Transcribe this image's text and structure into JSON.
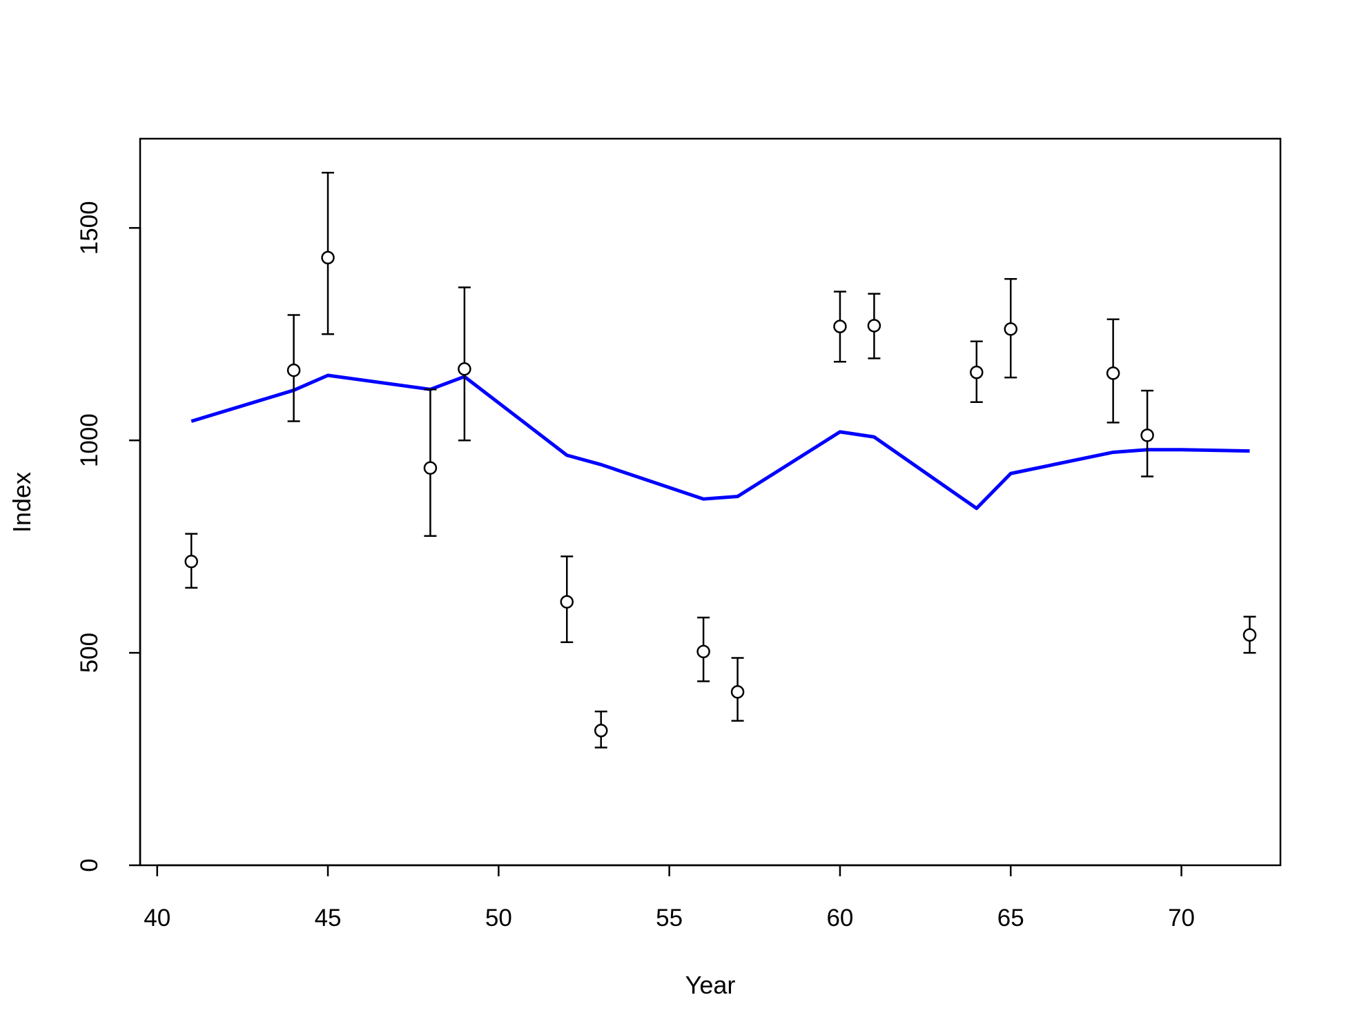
{
  "chart_data": {
    "type": "scatter",
    "title": "",
    "xlabel": "Year",
    "ylabel": "Index",
    "xlim": [
      39.5,
      72.9
    ],
    "ylim": [
      0,
      1710
    ],
    "x_ticks": [
      40,
      45,
      50,
      55,
      60,
      65,
      70
    ],
    "y_ticks": [
      0,
      500,
      1000,
      1500
    ],
    "grid": false,
    "legend": "none",
    "observed": {
      "marker": "open-circle",
      "color": "#000000",
      "points": [
        {
          "x": 41,
          "y": 715,
          "lo": 653,
          "hi": 780
        },
        {
          "x": 44,
          "y": 1165,
          "lo": 1045,
          "hi": 1295
        },
        {
          "x": 45,
          "y": 1430,
          "lo": 1250,
          "hi": 1630
        },
        {
          "x": 48,
          "y": 935,
          "lo": 775,
          "hi": 1120
        },
        {
          "x": 49,
          "y": 1168,
          "lo": 1000,
          "hi": 1360
        },
        {
          "x": 52,
          "y": 620,
          "lo": 525,
          "hi": 727
        },
        {
          "x": 53,
          "y": 317,
          "lo": 277,
          "hi": 362
        },
        {
          "x": 56,
          "y": 503,
          "lo": 433,
          "hi": 583
        },
        {
          "x": 57,
          "y": 408,
          "lo": 340,
          "hi": 488
        },
        {
          "x": 60,
          "y": 1268,
          "lo": 1185,
          "hi": 1350
        },
        {
          "x": 61,
          "y": 1270,
          "lo": 1193,
          "hi": 1345
        },
        {
          "x": 64,
          "y": 1160,
          "lo": 1090,
          "hi": 1233
        },
        {
          "x": 65,
          "y": 1262,
          "lo": 1148,
          "hi": 1380
        },
        {
          "x": 68,
          "y": 1158,
          "lo": 1042,
          "hi": 1285
        },
        {
          "x": 69,
          "y": 1012,
          "lo": 915,
          "hi": 1117
        },
        {
          "x": 72,
          "y": 542,
          "lo": 500,
          "hi": 585
        }
      ]
    },
    "fitted": {
      "color": "#0000ff",
      "x": [
        41,
        44,
        45,
        48,
        49,
        52,
        53,
        56,
        57,
        60,
        61,
        64,
        65,
        68,
        69,
        70,
        72
      ],
      "y": [
        1045,
        1118,
        1153,
        1120,
        1150,
        965,
        943,
        862,
        868,
        1020,
        1008,
        840,
        922,
        972,
        978,
        978,
        975
      ]
    }
  }
}
